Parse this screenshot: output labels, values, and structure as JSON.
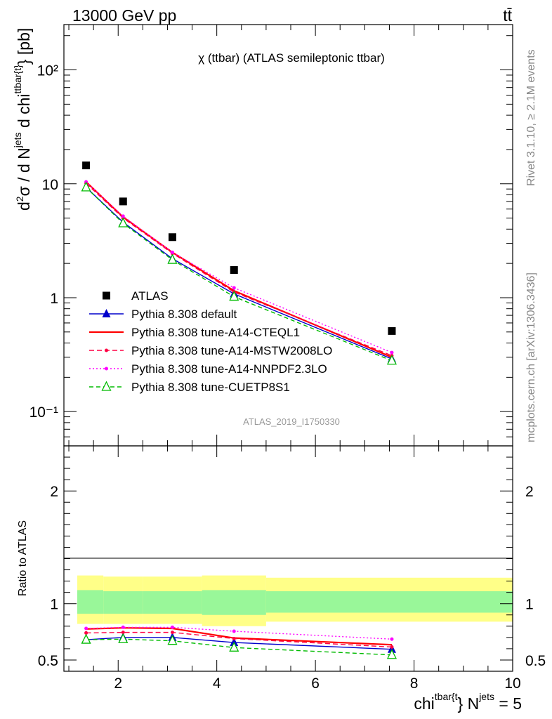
{
  "header": {
    "energy_label": "13000 GeV pp",
    "process_label": "tt̄",
    "rivet_label": "Rivet 3.1.10, ≥ 2.1M events",
    "mcplots_label": "mcplots.cern.ch [arXiv:1306.3436]",
    "analysis_label": "ATLAS_2019_I1750330"
  },
  "chart_data": {
    "type": "scatter",
    "title": "χ (ttbar) (ATLAS semileptonic ttbar)",
    "ylabel_main": "d²σ / d N^jets d chi^ttbar{t} [pb]",
    "ylabel_ratio": "Ratio to ATLAS",
    "xlabel": "chi^tbar{t} N^jets = 5",
    "xlim": [
      0.9,
      10.0
    ],
    "ylim_main": [
      0.05,
      250
    ],
    "ylim_ratio": [
      0.4,
      2.4
    ],
    "yscale_main": "log",
    "x_ticks": [
      "2",
      "4",
      "6",
      "8",
      "10"
    ],
    "y_ticks_main": [
      "10⁻¹",
      "1",
      "10",
      "10²"
    ],
    "y_ticks_ratio": [
      "0.5",
      "1",
      "2"
    ],
    "bins": [
      [
        1.0,
        1.7
      ],
      [
        1.7,
        2.5
      ],
      [
        2.5,
        3.7
      ],
      [
        3.7,
        5.0
      ],
      [
        5.0,
        10.0
      ]
    ],
    "x": [
      1.35,
      2.1,
      3.1,
      4.35,
      7.55
    ],
    "data": {
      "name": "ATLAS",
      "values": [
        14.5,
        7.0,
        3.4,
        1.75,
        0.51
      ],
      "band_outer": [
        [
          0.82,
          1.25
        ],
        [
          0.82,
          1.24
        ],
        [
          0.82,
          1.24
        ],
        [
          0.8,
          1.25
        ],
        [
          0.84,
          1.23
        ]
      ],
      "band_inner": [
        [
          0.91,
          1.12
        ],
        [
          0.91,
          1.11
        ],
        [
          0.91,
          1.11
        ],
        [
          0.9,
          1.12
        ],
        [
          0.92,
          1.11
        ]
      ]
    },
    "legend_position": "center-left",
    "series": [
      {
        "name": "Pythia 8.308 default",
        "color": "#0000cc",
        "dash": "",
        "marker": "filled-triangle",
        "values": [
          9.3,
          4.6,
          2.2,
          1.08,
          0.29
        ],
        "ratio": [
          0.68,
          0.7,
          0.7,
          0.655,
          0.595
        ]
      },
      {
        "name": "Pythia 8.308 tune-A14-CTEQL1",
        "color": "#ff0000",
        "dash": "",
        "marker": "",
        "values": [
          10.4,
          5.1,
          2.5,
          1.15,
          0.3
        ],
        "ratio": [
          0.775,
          0.785,
          0.78,
          0.695,
          0.635
        ]
      },
      {
        "name": "Pythia 8.308 tune-A14-MSTW2008LO",
        "color": "#ff0044",
        "dash": "7,4",
        "marker": "small-dot",
        "values": [
          10.1,
          5.0,
          2.45,
          1.12,
          0.31
        ],
        "ratio": [
          0.74,
          0.745,
          0.745,
          0.69,
          0.615
        ]
      },
      {
        "name": "Pythia 8.308 tune-A14-NNPDF2.3LO",
        "color": "#ff00ff",
        "dash": "2,3",
        "marker": "small-dot",
        "values": [
          10.4,
          5.2,
          2.5,
          1.22,
          0.33
        ],
        "ratio": [
          0.78,
          0.79,
          0.79,
          0.755,
          0.685
        ]
      },
      {
        "name": "Pythia 8.308 tune-CUETP8S1",
        "color": "#00bb00",
        "dash": "6,4",
        "marker": "open-triangle",
        "values": [
          9.3,
          4.5,
          2.15,
          1.02,
          0.28
        ],
        "ratio": [
          0.68,
          0.685,
          0.67,
          0.61,
          0.545
        ]
      }
    ]
  }
}
